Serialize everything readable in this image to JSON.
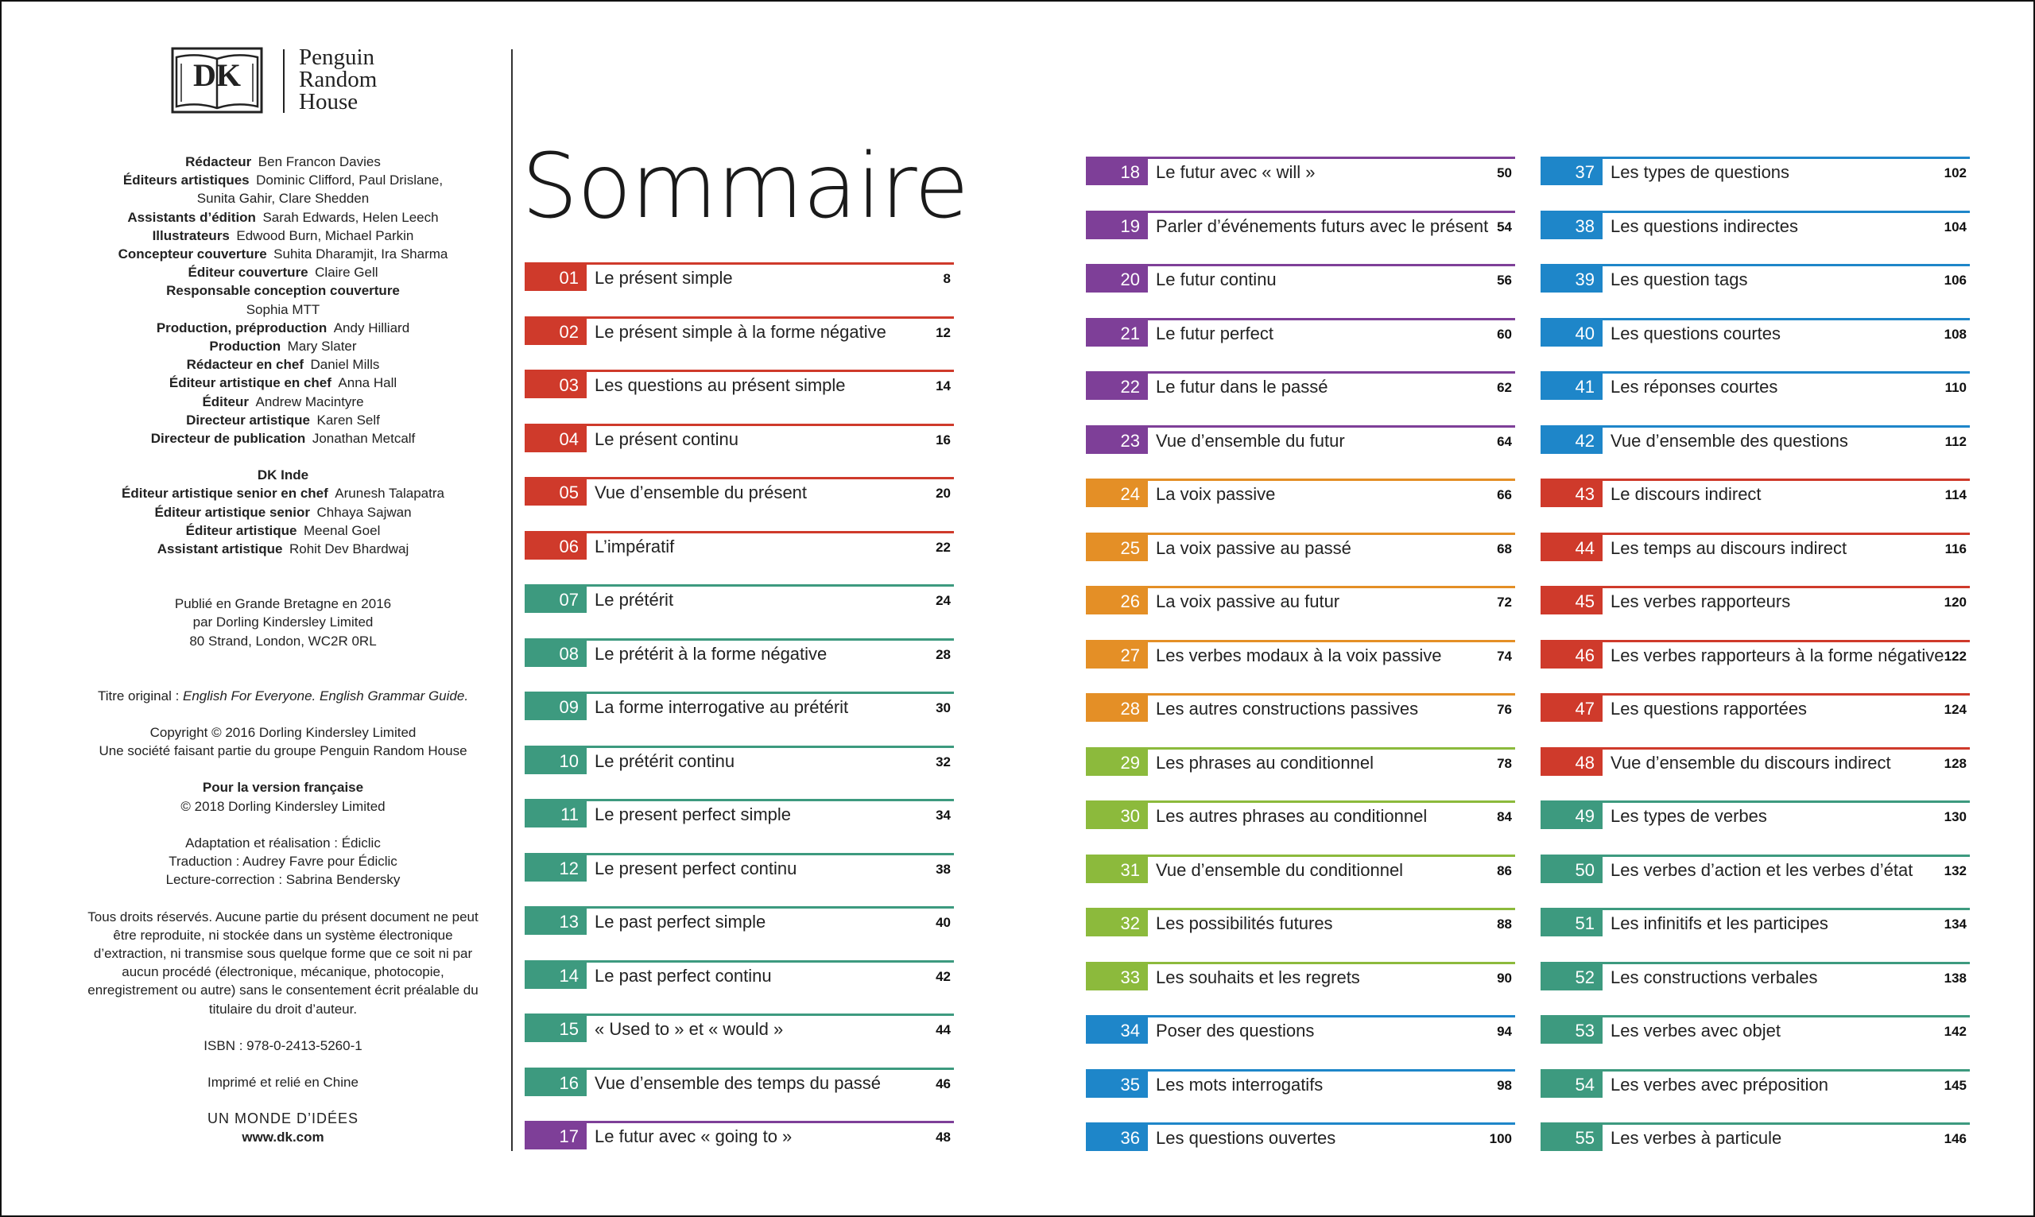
{
  "brand": {
    "logo_text": "DK",
    "publisher_line1": "Penguin",
    "publisher_line2": "Random",
    "publisher_line3": "House"
  },
  "credits": [
    {
      "role": "Rédacteur",
      "name": "Ben Francon Davies"
    },
    {
      "role": "Éditeurs artistiques",
      "name": "Dominic Clifford, Paul Drislane,"
    },
    {
      "role": "",
      "name": "Sunita Gahir, Clare Shedden"
    },
    {
      "role": "Assistants d’édition",
      "name": "Sarah Edwards, Helen Leech"
    },
    {
      "role": "Illustrateurs",
      "name": "Edwood Burn, Michael Parkin"
    },
    {
      "role": "Concepteur couverture",
      "name": "Suhita Dharamjit, Ira Sharma"
    },
    {
      "role": "Éditeur couverture",
      "name": "Claire Gell"
    },
    {
      "role": "Responsable conception couverture",
      "name": ""
    },
    {
      "role": "",
      "name": "Sophia MTT"
    },
    {
      "role": "Production, préproduction",
      "name": "Andy Hilliard"
    },
    {
      "role": "Production",
      "name": "Mary Slater"
    },
    {
      "role": "Rédacteur en chef",
      "name": "Daniel Mills"
    },
    {
      "role": "Éditeur artistique en chef",
      "name": "Anna Hall"
    },
    {
      "role": "Éditeur",
      "name": "Andrew Macintyre"
    },
    {
      "role": "Directeur artistique",
      "name": "Karen Self"
    },
    {
      "role": "Directeur de publication",
      "name": "Jonathan Metcalf"
    }
  ],
  "dk_inde": {
    "heading": "DK Inde",
    "credits": [
      {
        "role": "Éditeur artistique senior en chef",
        "name": "Arunesh Talapatra"
      },
      {
        "role": "Éditeur artistique senior",
        "name": "Chhaya Sajwan"
      },
      {
        "role": "Éditeur artistique",
        "name": "Meenal Goel"
      },
      {
        "role": "Assistant artistique",
        "name": "Rohit Dev Bhardwaj"
      }
    ]
  },
  "publication": {
    "line1": "Publié en Grande Bretagne en 2016",
    "line2": "par Dorling Kindersley Limited",
    "line3": "80 Strand, London, WC2R 0RL",
    "original_title_label": "Titre original : ",
    "original_title": "English For Everyone. English Grammar Guide.",
    "copyright1": "Copyright © 2016 Dorling Kindersley Limited",
    "copyright2": "Une société faisant partie du groupe Penguin Random House",
    "french_heading": "Pour la version française",
    "french_copyright": "© 2018 Dorling Kindersley Limited",
    "adaptation": "Adaptation et réalisation : Édiclic",
    "translation": "Traduction : Audrey Favre pour Édiclic",
    "proofreading": "Lecture-correction : Sabrina Bendersky",
    "rights": [
      "Tous droits réservés. Aucune partie du présent document ne peut",
      "être reproduite, ni stockée dans un système électronique",
      "d’extraction, ni transmise sous quelque forme que ce soit ni par",
      "aucun procédé (électronique, mécanique, photocopie,",
      "enregistrement ou autre) sans le consentement écrit préalable du",
      "titulaire du droit d’auteur."
    ],
    "isbn": "ISBN : 978-0-2413-5260-1",
    "printed": "Imprimé et relié en Chine",
    "slogan": "UN MONDE D’IDÉES",
    "website": "www.dk.com"
  },
  "contents": {
    "title": "Sommaire",
    "entries": [
      {
        "num": "01",
        "label": "Le présent simple",
        "page": "8",
        "color": "red"
      },
      {
        "num": "02",
        "label": "Le présent simple à la forme négative",
        "page": "12",
        "color": "red"
      },
      {
        "num": "03",
        "label": "Les questions au présent simple",
        "page": "14",
        "color": "red"
      },
      {
        "num": "04",
        "label": "Le présent continu",
        "page": "16",
        "color": "red"
      },
      {
        "num": "05",
        "label": "Vue d’ensemble du présent",
        "page": "20",
        "color": "red"
      },
      {
        "num": "06",
        "label": "L’impératif",
        "page": "22",
        "color": "red"
      },
      {
        "num": "07",
        "label": "Le prétérit",
        "page": "24",
        "color": "teal"
      },
      {
        "num": "08",
        "label": "Le prétérit à la forme négative",
        "page": "28",
        "color": "teal"
      },
      {
        "num": "09",
        "label": "La forme interrogative au prétérit",
        "page": "30",
        "color": "teal"
      },
      {
        "num": "10",
        "label": "Le prétérit continu",
        "page": "32",
        "color": "teal"
      },
      {
        "num": "11",
        "label": "Le present perfect simple",
        "page": "34",
        "color": "teal"
      },
      {
        "num": "12",
        "label": "Le present perfect continu",
        "page": "38",
        "color": "teal"
      },
      {
        "num": "13",
        "label": "Le past perfect simple",
        "page": "40",
        "color": "teal"
      },
      {
        "num": "14",
        "label": "Le past perfect continu",
        "page": "42",
        "color": "teal"
      },
      {
        "num": "15",
        "label": "« Used to » et « would »",
        "page": "44",
        "color": "teal"
      },
      {
        "num": "16",
        "label": "Vue d’ensemble des temps du passé",
        "page": "46",
        "color": "teal"
      },
      {
        "num": "17",
        "label": "Le futur avec « going to »",
        "page": "48",
        "color": "purple"
      },
      {
        "num": "18",
        "label": "Le futur avec « will »",
        "page": "50",
        "color": "purple"
      },
      {
        "num": "19",
        "label": "Parler d’événements futurs avec le présent",
        "page": "54",
        "color": "purple"
      },
      {
        "num": "20",
        "label": "Le futur continu",
        "page": "56",
        "color": "purple"
      },
      {
        "num": "21",
        "label": "Le futur perfect",
        "page": "60",
        "color": "purple"
      },
      {
        "num": "22",
        "label": "Le futur dans le passé",
        "page": "62",
        "color": "purple"
      },
      {
        "num": "23",
        "label": "Vue d’ensemble du futur",
        "page": "64",
        "color": "purple"
      },
      {
        "num": "24",
        "label": "La voix passive",
        "page": "66",
        "color": "orange"
      },
      {
        "num": "25",
        "label": "La voix passive au passé",
        "page": "68",
        "color": "orange"
      },
      {
        "num": "26",
        "label": "La voix passive au futur",
        "page": "72",
        "color": "orange"
      },
      {
        "num": "27",
        "label": "Les verbes modaux à la voix passive",
        "page": "74",
        "color": "orange"
      },
      {
        "num": "28",
        "label": "Les autres constructions passives",
        "page": "76",
        "color": "orange"
      },
      {
        "num": "29",
        "label": "Les phrases au conditionnel",
        "page": "78",
        "color": "lime"
      },
      {
        "num": "30",
        "label": "Les autres phrases au conditionnel",
        "page": "84",
        "color": "lime"
      },
      {
        "num": "31",
        "label": "Vue d’ensemble du conditionnel",
        "page": "86",
        "color": "lime"
      },
      {
        "num": "32",
        "label": "Les possibilités futures",
        "page": "88",
        "color": "lime"
      },
      {
        "num": "33",
        "label": "Les souhaits et les regrets",
        "page": "90",
        "color": "lime"
      },
      {
        "num": "34",
        "label": "Poser des questions",
        "page": "94",
        "color": "blue"
      },
      {
        "num": "35",
        "label": "Les mots interrogatifs",
        "page": "98",
        "color": "blue"
      },
      {
        "num": "36",
        "label": "Les questions ouvertes",
        "page": "100",
        "color": "blue"
      },
      {
        "num": "37",
        "label": "Les types de questions",
        "page": "102",
        "color": "blue"
      },
      {
        "num": "38",
        "label": "Les questions indirectes",
        "page": "104",
        "color": "blue"
      },
      {
        "num": "39",
        "label": "Les question tags",
        "page": "106",
        "color": "blue"
      },
      {
        "num": "40",
        "label": "Les questions courtes",
        "page": "108",
        "color": "blue"
      },
      {
        "num": "41",
        "label": "Les réponses courtes",
        "page": "110",
        "color": "blue"
      },
      {
        "num": "42",
        "label": "Vue d’ensemble des questions",
        "page": "112",
        "color": "blue"
      },
      {
        "num": "43",
        "label": "Le discours indirect",
        "page": "114",
        "color": "red"
      },
      {
        "num": "44",
        "label": "Les temps au discours indirect",
        "page": "116",
        "color": "red"
      },
      {
        "num": "45",
        "label": "Les verbes rapporteurs",
        "page": "120",
        "color": "red"
      },
      {
        "num": "46",
        "label": "Les verbes rapporteurs à la forme négative",
        "page": "122",
        "color": "red"
      },
      {
        "num": "47",
        "label": "Les questions rapportées",
        "page": "124",
        "color": "red"
      },
      {
        "num": "48",
        "label": "Vue d’ensemble du discours indirect",
        "page": "128",
        "color": "red"
      },
      {
        "num": "49",
        "label": "Les types de verbes",
        "page": "130",
        "color": "teal"
      },
      {
        "num": "50",
        "label": "Les verbes d’action et les verbes d’état",
        "page": "132",
        "color": "teal"
      },
      {
        "num": "51",
        "label": "Les infinitifs et les participes",
        "page": "134",
        "color": "teal"
      },
      {
        "num": "52",
        "label": "Les constructions verbales",
        "page": "138",
        "color": "teal"
      },
      {
        "num": "53",
        "label": "Les verbes avec objet",
        "page": "142",
        "color": "teal"
      },
      {
        "num": "54",
        "label": "Les verbes avec préposition",
        "page": "145",
        "color": "teal"
      },
      {
        "num": "55",
        "label": "Les verbes à particule",
        "page": "146",
        "color": "teal"
      }
    ]
  }
}
